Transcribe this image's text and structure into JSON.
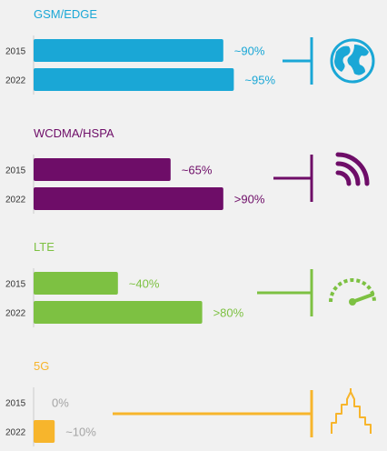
{
  "chart_data": {
    "type": "bar",
    "orientation": "horizontal",
    "unit": "%",
    "categories": [
      "2015",
      "2022"
    ],
    "xlim": [
      0,
      100
    ],
    "grid": false,
    "legend": "none",
    "sections": [
      {
        "name": "GSM/EDGE",
        "color": "#1aa7d6",
        "icon": "globe-icon",
        "bars": [
          {
            "year": "2015",
            "value": 90,
            "label": "~90%"
          },
          {
            "year": "2022",
            "value": 95,
            "label": "~95%"
          }
        ]
      },
      {
        "name": "WCDMA/HSPA",
        "color": "#6e0d68",
        "icon": "signal-waves-icon",
        "bars": [
          {
            "year": "2015",
            "value": 65,
            "label": "~65%"
          },
          {
            "year": "2022",
            "value": 90,
            "label": ">90%"
          }
        ]
      },
      {
        "name": "LTE",
        "color": "#7dc142",
        "icon": "speedometer-icon",
        "bars": [
          {
            "year": "2015",
            "value": 40,
            "label": "~40%"
          },
          {
            "year": "2022",
            "value": 80,
            "label": ">80%"
          }
        ]
      },
      {
        "name": "5G",
        "color": "#f7b52c",
        "icon": "city-skyline-icon",
        "bars": [
          {
            "year": "2015",
            "value": 0,
            "label": "0%"
          },
          {
            "year": "2022",
            "value": 10,
            "label": "~10%"
          }
        ]
      }
    ]
  },
  "colors": {
    "background": "#f1f1f1",
    "axis": "#cccccc",
    "muted_label": "#a5a5a5"
  }
}
